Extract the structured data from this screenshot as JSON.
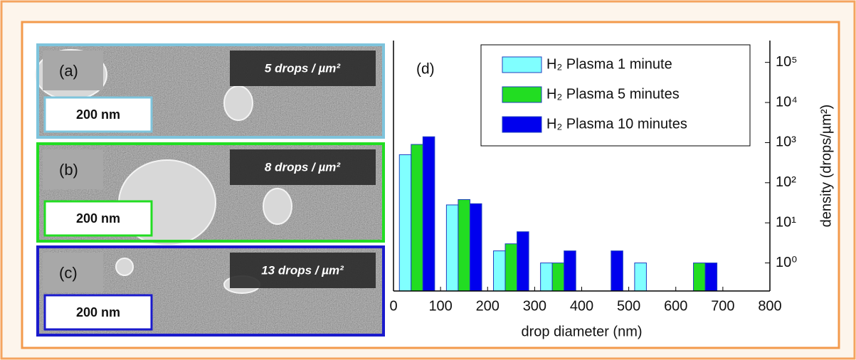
{
  "panels": [
    {
      "label": "(a)",
      "density": "5 drops / µm²",
      "scale": "200 nm",
      "color": "#7ec4dc"
    },
    {
      "label": "(b)",
      "density": "8 drops / µm²",
      "scale": "200 nm",
      "color": "#22dd22"
    },
    {
      "label": "(c)",
      "density": "13 drops / µm²",
      "scale": "200 nm",
      "color": "#1a1acc"
    }
  ],
  "chart_data": {
    "type": "bar",
    "panel_label": "(d)",
    "x_label": "drop diameter (nm)",
    "y_label": "density (drops/µm²)",
    "x": [
      50,
      150,
      250,
      350,
      450,
      550,
      650
    ],
    "series": [
      {
        "name": "H₂ Plasma 1 minute",
        "color": "#80ffff",
        "values": [
          500,
          28,
          2,
          1,
          null,
          1,
          null
        ]
      },
      {
        "name": "H₂ Plasma 5 minutes",
        "color": "#22dd22",
        "values": [
          900,
          38,
          3,
          1,
          null,
          null,
          1
        ]
      },
      {
        "name": "H₂ Plasma 10 minutes",
        "color": "#0000ee",
        "values": [
          1400,
          30,
          6,
          2,
          2,
          null,
          1
        ]
      }
    ],
    "xlim": [
      0,
      800
    ],
    "xticks": [
      0,
      100,
      200,
      300,
      400,
      500,
      600,
      700,
      800
    ],
    "ylim": [
      0.2,
      350000
    ],
    "log_y": true,
    "y_axis_side": "right",
    "yticks": [
      {
        "value": 1,
        "label": "10⁰"
      },
      {
        "value": 10,
        "label": "10¹"
      },
      {
        "value": 100,
        "label": "10²"
      },
      {
        "value": 1000,
        "label": "10³"
      },
      {
        "value": 10000,
        "label": "10⁴"
      },
      {
        "value": 100000,
        "label": "10⁵"
      }
    ],
    "legend": "top"
  }
}
